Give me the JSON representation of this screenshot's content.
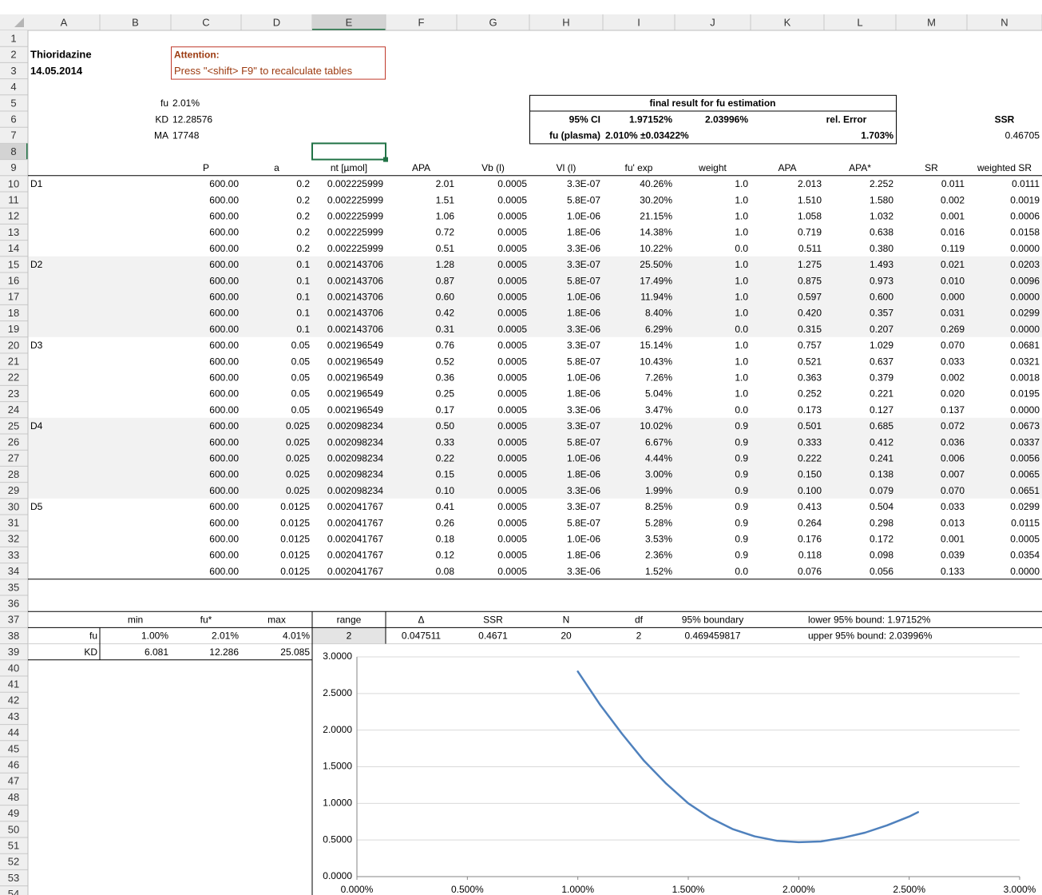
{
  "column_headers": [
    "A",
    "B",
    "C",
    "D",
    "E",
    "F",
    "G",
    "H",
    "I",
    "J",
    "K",
    "L",
    "M",
    "N"
  ],
  "row_numbers": [
    1,
    2,
    3,
    4,
    5,
    6,
    7,
    8,
    9,
    10,
    11,
    12,
    13,
    14,
    15,
    16,
    17,
    18,
    19,
    20,
    21,
    22,
    23,
    24,
    25,
    26,
    27,
    28,
    29,
    30,
    31,
    32,
    33,
    34,
    35,
    36,
    37,
    38,
    39,
    40,
    41,
    42,
    43,
    44,
    45,
    46,
    47,
    48,
    49,
    50,
    51,
    52,
    53,
    54
  ],
  "header": {
    "compound": "Thioridazine",
    "date": "14.05.2014",
    "attention_title": "Attention:",
    "attention_text": "Press \"<shift> F9\" to recalculate tables"
  },
  "parameters": [
    {
      "label": "fu",
      "value": "2.01%"
    },
    {
      "label": "KD",
      "value": "12.28576"
    },
    {
      "label": "MA",
      "value": "17748"
    }
  ],
  "result": {
    "title": "final result for fu estimation",
    "ci_label": "95% CI",
    "ci_lower": "1.97152%",
    "ci_upper": "2.03996%",
    "rel_error_label": "rel. Error",
    "ssr_label": "SSR",
    "fu_label": "fu (plasma)",
    "fu_value": "2.010% ±0.03422%",
    "rel_error": "1.703%",
    "ssr": "0.46705"
  },
  "table": {
    "columns": [
      "P",
      "a",
      "nt [µmol]",
      "APA",
      "Vb (l)",
      "Vl (l)",
      "fu' exp",
      "weight",
      "APA",
      "APA*",
      "SR",
      "weighted SR"
    ],
    "groups": [
      {
        "label": "D1",
        "rows": [
          [
            "600.00",
            "0.2",
            "0.002225999",
            "2.01",
            "0.0005",
            "3.3E-07",
            "40.26%",
            "1.0",
            "2.013",
            "2.252",
            "0.011",
            "0.0111"
          ],
          [
            "600.00",
            "0.2",
            "0.002225999",
            "1.51",
            "0.0005",
            "5.8E-07",
            "30.20%",
            "1.0",
            "1.510",
            "1.580",
            "0.002",
            "0.0019"
          ],
          [
            "600.00",
            "0.2",
            "0.002225999",
            "1.06",
            "0.0005",
            "1.0E-06",
            "21.15%",
            "1.0",
            "1.058",
            "1.032",
            "0.001",
            "0.0006"
          ],
          [
            "600.00",
            "0.2",
            "0.002225999",
            "0.72",
            "0.0005",
            "1.8E-06",
            "14.38%",
            "1.0",
            "0.719",
            "0.638",
            "0.016",
            "0.0158"
          ],
          [
            "600.00",
            "0.2",
            "0.002225999",
            "0.51",
            "0.0005",
            "3.3E-06",
            "10.22%",
            "0.0",
            "0.511",
            "0.380",
            "0.119",
            "0.0000"
          ]
        ]
      },
      {
        "label": "D2",
        "rows": [
          [
            "600.00",
            "0.1",
            "0.002143706",
            "1.28",
            "0.0005",
            "3.3E-07",
            "25.50%",
            "1.0",
            "1.275",
            "1.493",
            "0.021",
            "0.0203"
          ],
          [
            "600.00",
            "0.1",
            "0.002143706",
            "0.87",
            "0.0005",
            "5.8E-07",
            "17.49%",
            "1.0",
            "0.875",
            "0.973",
            "0.010",
            "0.0096"
          ],
          [
            "600.00",
            "0.1",
            "0.002143706",
            "0.60",
            "0.0005",
            "1.0E-06",
            "11.94%",
            "1.0",
            "0.597",
            "0.600",
            "0.000",
            "0.0000"
          ],
          [
            "600.00",
            "0.1",
            "0.002143706",
            "0.42",
            "0.0005",
            "1.8E-06",
            "8.40%",
            "1.0",
            "0.420",
            "0.357",
            "0.031",
            "0.0299"
          ],
          [
            "600.00",
            "0.1",
            "0.002143706",
            "0.31",
            "0.0005",
            "3.3E-06",
            "6.29%",
            "0.0",
            "0.315",
            "0.207",
            "0.269",
            "0.0000"
          ]
        ]
      },
      {
        "label": "D3",
        "rows": [
          [
            "600.00",
            "0.05",
            "0.002196549",
            "0.76",
            "0.0005",
            "3.3E-07",
            "15.14%",
            "1.0",
            "0.757",
            "1.029",
            "0.070",
            "0.0681"
          ],
          [
            "600.00",
            "0.05",
            "0.002196549",
            "0.52",
            "0.0005",
            "5.8E-07",
            "10.43%",
            "1.0",
            "0.521",
            "0.637",
            "0.033",
            "0.0321"
          ],
          [
            "600.00",
            "0.05",
            "0.002196549",
            "0.36",
            "0.0005",
            "1.0E-06",
            "7.26%",
            "1.0",
            "0.363",
            "0.379",
            "0.002",
            "0.0018"
          ],
          [
            "600.00",
            "0.05",
            "0.002196549",
            "0.25",
            "0.0005",
            "1.8E-06",
            "5.04%",
            "1.0",
            "0.252",
            "0.221",
            "0.020",
            "0.0195"
          ],
          [
            "600.00",
            "0.05",
            "0.002196549",
            "0.17",
            "0.0005",
            "3.3E-06",
            "3.47%",
            "0.0",
            "0.173",
            "0.127",
            "0.137",
            "0.0000"
          ]
        ]
      },
      {
        "label": "D4",
        "rows": [
          [
            "600.00",
            "0.025",
            "0.002098234",
            "0.50",
            "0.0005",
            "3.3E-07",
            "10.02%",
            "0.9",
            "0.501",
            "0.685",
            "0.072",
            "0.0673"
          ],
          [
            "600.00",
            "0.025",
            "0.002098234",
            "0.33",
            "0.0005",
            "5.8E-07",
            "6.67%",
            "0.9",
            "0.333",
            "0.412",
            "0.036",
            "0.0337"
          ],
          [
            "600.00",
            "0.025",
            "0.002098234",
            "0.22",
            "0.0005",
            "1.0E-06",
            "4.44%",
            "0.9",
            "0.222",
            "0.241",
            "0.006",
            "0.0056"
          ],
          [
            "600.00",
            "0.025",
            "0.002098234",
            "0.15",
            "0.0005",
            "1.8E-06",
            "3.00%",
            "0.9",
            "0.150",
            "0.138",
            "0.007",
            "0.0065"
          ],
          [
            "600.00",
            "0.025",
            "0.002098234",
            "0.10",
            "0.0005",
            "3.3E-06",
            "1.99%",
            "0.9",
            "0.100",
            "0.079",
            "0.070",
            "0.0651"
          ]
        ]
      },
      {
        "label": "D5",
        "rows": [
          [
            "600.00",
            "0.0125",
            "0.002041767",
            "0.41",
            "0.0005",
            "3.3E-07",
            "8.25%",
            "0.9",
            "0.413",
            "0.504",
            "0.033",
            "0.0299"
          ],
          [
            "600.00",
            "0.0125",
            "0.002041767",
            "0.26",
            "0.0005",
            "5.8E-07",
            "5.28%",
            "0.9",
            "0.264",
            "0.298",
            "0.013",
            "0.0115"
          ],
          [
            "600.00",
            "0.0125",
            "0.002041767",
            "0.18",
            "0.0005",
            "1.0E-06",
            "3.53%",
            "0.9",
            "0.176",
            "0.172",
            "0.001",
            "0.0005"
          ],
          [
            "600.00",
            "0.0125",
            "0.002041767",
            "0.12",
            "0.0005",
            "1.8E-06",
            "2.36%",
            "0.9",
            "0.118",
            "0.098",
            "0.039",
            "0.0354"
          ],
          [
            "600.00",
            "0.0125",
            "0.002041767",
            "0.08",
            "0.0005",
            "3.3E-06",
            "1.52%",
            "0.0",
            "0.076",
            "0.056",
            "0.133",
            "0.0000"
          ]
        ]
      }
    ]
  },
  "bounds_table": {
    "columns": [
      "min",
      "fu*",
      "max",
      "range",
      "Δ",
      "SSR",
      "N",
      "df",
      "95% boundary"
    ],
    "lower_bound": "lower 95% bound: 1.97152%",
    "upper_bound": "upper 95% bound: 2.03996%",
    "rows": [
      {
        "label": "fu",
        "values": [
          "1.00%",
          "2.01%",
          "4.01%",
          "2",
          "0.047511",
          "0.4671",
          "20",
          "2",
          "0.469459817"
        ]
      },
      {
        "label": "KD",
        "values": [
          "6.081",
          "12.286",
          "25.085"
        ]
      }
    ]
  },
  "chart_data": {
    "type": "line",
    "x": [
      1.0,
      1.1,
      1.2,
      1.3,
      1.4,
      1.5,
      1.6,
      1.7,
      1.8,
      1.9,
      2.0,
      2.1,
      2.2,
      2.3,
      2.4,
      2.5,
      2.54
    ],
    "series": [
      {
        "color": "#4f81bd",
        "values": [
          2.8,
          2.35,
          1.95,
          1.58,
          1.27,
          1.0,
          0.8,
          0.65,
          0.55,
          0.49,
          0.47,
          0.48,
          0.53,
          0.6,
          0.7,
          0.82,
          0.88
        ]
      }
    ],
    "xlim": [
      0,
      3
    ],
    "ylim": [
      0,
      3
    ],
    "xticks": [
      {
        "value": 0,
        "label": "0.000%"
      },
      {
        "value": 0.5,
        "label": "0.500%"
      },
      {
        "value": 1,
        "label": "1.000%"
      },
      {
        "value": 1.5,
        "label": "1.500%"
      },
      {
        "value": 2,
        "label": "2.000%"
      },
      {
        "value": 2.5,
        "label": "2.500%"
      },
      {
        "value": 3,
        "label": "3.000%"
      }
    ],
    "yticks": [
      {
        "value": 0,
        "label": "0.0000"
      },
      {
        "value": 0.5,
        "label": "0.5000"
      },
      {
        "value": 1,
        "label": "1.0000"
      },
      {
        "value": 1.5,
        "label": "1.5000"
      },
      {
        "value": 2,
        "label": "2.0000"
      },
      {
        "value": 2.5,
        "label": "2.5000"
      },
      {
        "value": 3,
        "label": "3.0000"
      }
    ],
    "grid": true
  }
}
